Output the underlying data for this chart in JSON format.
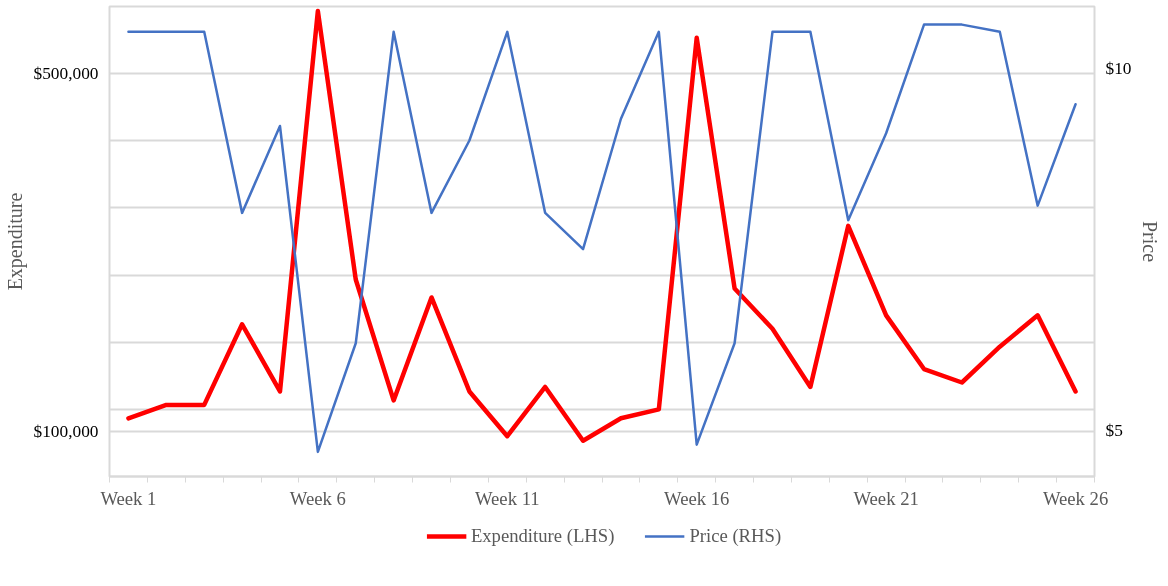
{
  "chart_data": {
    "type": "line",
    "categories": [
      "Week 1",
      null,
      null,
      null,
      null,
      "Week 6",
      null,
      null,
      null,
      null,
      "Week 11",
      null,
      null,
      null,
      null,
      "Week 16",
      null,
      null,
      null,
      null,
      "Week 21",
      null,
      null,
      null,
      null,
      "Week 26"
    ],
    "series": [
      {
        "name": "Expenditure (LHS)",
        "color": "#ff0000",
        "values": [
          115000,
          130000,
          130000,
          220000,
          145000,
          570000,
          270000,
          135000,
          250000,
          145000,
          95000,
          150000,
          90000,
          115000,
          125000,
          540000,
          260000,
          215000,
          150000,
          330000,
          230000,
          170000,
          155000,
          195000,
          230000,
          145000
        ]
      },
      {
        "name": "Price (RHS)",
        "color": "#4472c4",
        "axis": "y2",
        "values": [
          10.5,
          10.5,
          10.5,
          8.0,
          9.2,
          4.7,
          6.2,
          10.5,
          8.0,
          9.0,
          10.5,
          8.0,
          7.5,
          9.3,
          10.5,
          4.8,
          6.2,
          10.5,
          10.5,
          7.9,
          9.1,
          10.6,
          10.6,
          10.5,
          8.1,
          9.5
        ]
      }
    ],
    "ylabel": "Expenditure",
    "y2label": "Price",
    "ylim": [
      50000,
      575000
    ],
    "yticks": [
      {
        "value": 575000,
        "label": null
      },
      {
        "value": 500000,
        "label": "$500,000"
      },
      {
        "value": 425000,
        "label": null
      },
      {
        "value": 350000,
        "label": null
      },
      {
        "value": 275000,
        "label": null
      },
      {
        "value": 200000,
        "label": null
      },
      {
        "value": 125000,
        "label": null
      },
      {
        "value": 100000,
        "label": "$100,000"
      }
    ],
    "y2lim": [
      4.36,
      10.85
    ],
    "y2ticks": [
      {
        "value": 10,
        "label": "$10"
      },
      {
        "value": 5,
        "label": "$5"
      }
    ],
    "grid": "y",
    "legend": "bottom",
    "line_style": "solid",
    "marker": "none"
  }
}
